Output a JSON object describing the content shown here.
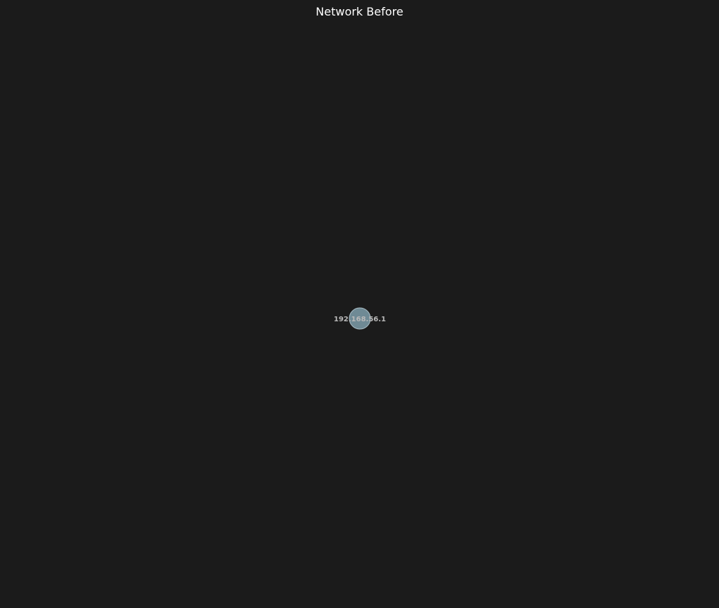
{
  "title": "Network Before",
  "colors": {
    "background": "#1b1b1b",
    "title": "#ffffff",
    "node_fill": "#6f8a95",
    "node_stroke": "#a9bcc4",
    "node_label": "#b9b9b9"
  },
  "nodes": [
    {
      "id": "192.168.56.1",
      "label": "192.168.56.1"
    }
  ],
  "edges": []
}
